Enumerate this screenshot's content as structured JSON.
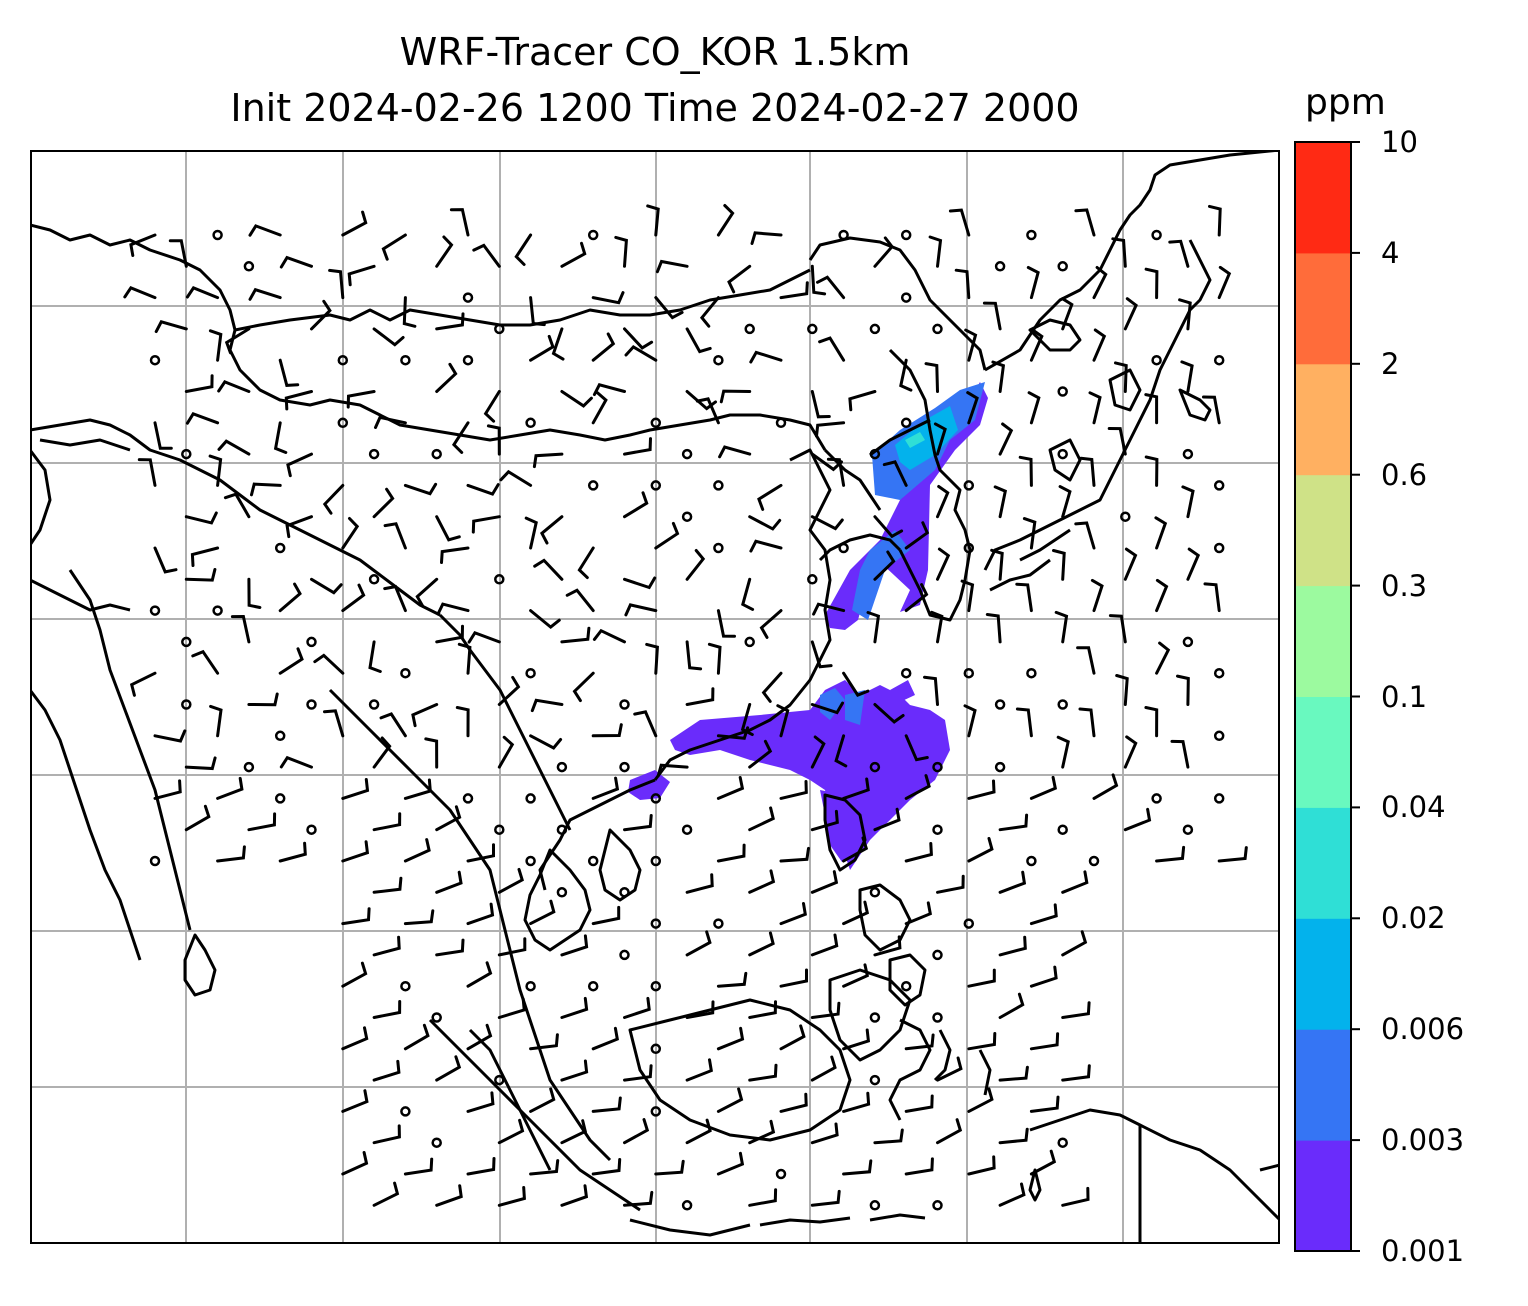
{
  "title": {
    "line1": "WRF-Tracer CO_KOR 1.5km",
    "line2": "Init 2024-02-26 1200 Time 2024-02-27 2000"
  },
  "colorbar": {
    "unit": "ppm",
    "levels": [
      "0.001",
      "0.003",
      "0.006",
      "0.02",
      "0.04",
      "0.1",
      "0.3",
      "0.6",
      "2",
      "4",
      "10"
    ],
    "colors": [
      "#6a2cfb",
      "#3575f4",
      "#03b2ec",
      "#2fdfd6",
      "#69f9bf",
      "#9cfa9f",
      "#cfe287",
      "#ffb061",
      "#ff6c3a",
      "#ff2a14"
    ]
  },
  "map": {
    "gridlines": true,
    "wind_barbs": true,
    "tracer_colors": {
      "low": "#6a2cfb",
      "mid": "#3575f4",
      "high": "#03b2ec",
      "peak": "#2fdfd6"
    }
  }
}
